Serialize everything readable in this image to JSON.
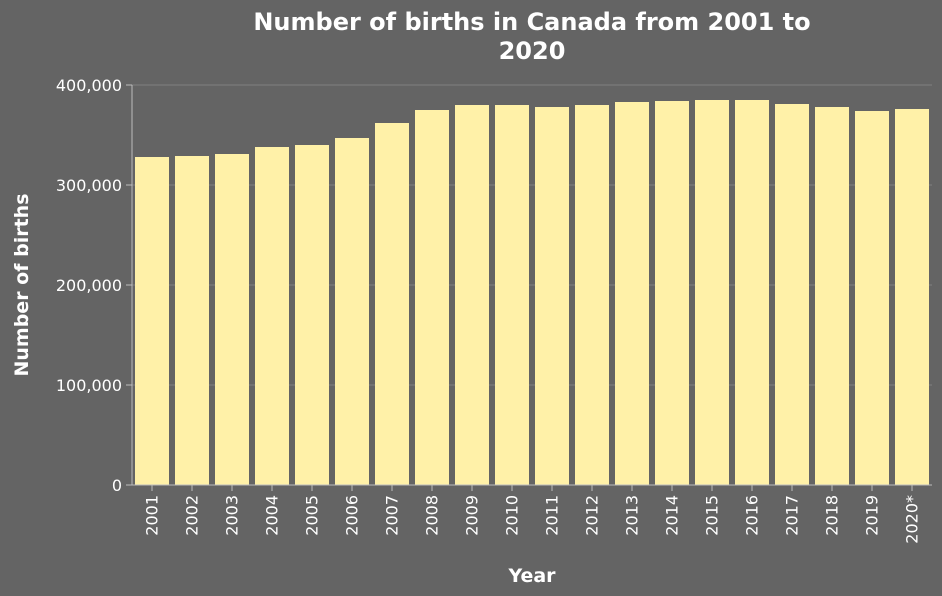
{
  "chart_data": {
    "type": "bar",
    "title_lines": [
      "Number of births in Canada from 2001 to",
      "2020"
    ],
    "xlabel": "Year",
    "ylabel": "Number of births",
    "categories": [
      "2001",
      "2002",
      "2003",
      "2004",
      "2005",
      "2006",
      "2007",
      "2008",
      "2009",
      "2010",
      "2011",
      "2012",
      "2013",
      "2014",
      "2015",
      "2016",
      "2017",
      "2018",
      "2019",
      "2020*"
    ],
    "values": [
      328000,
      329000,
      331000,
      338000,
      340000,
      347000,
      362000,
      375000,
      380000,
      380000,
      378000,
      380000,
      383000,
      384000,
      385000,
      385000,
      381000,
      378000,
      374000,
      376000
    ],
    "ylim": [
      0,
      400000
    ],
    "yticks": [
      0,
      100000,
      200000,
      300000,
      400000
    ],
    "ytick_labels": [
      "0",
      "100,000",
      "200,000",
      "300,000",
      "400,000"
    ],
    "grid": true,
    "colors": {
      "background": "#646464",
      "bar": "#fff1a8",
      "text": "#ffffff"
    }
  }
}
